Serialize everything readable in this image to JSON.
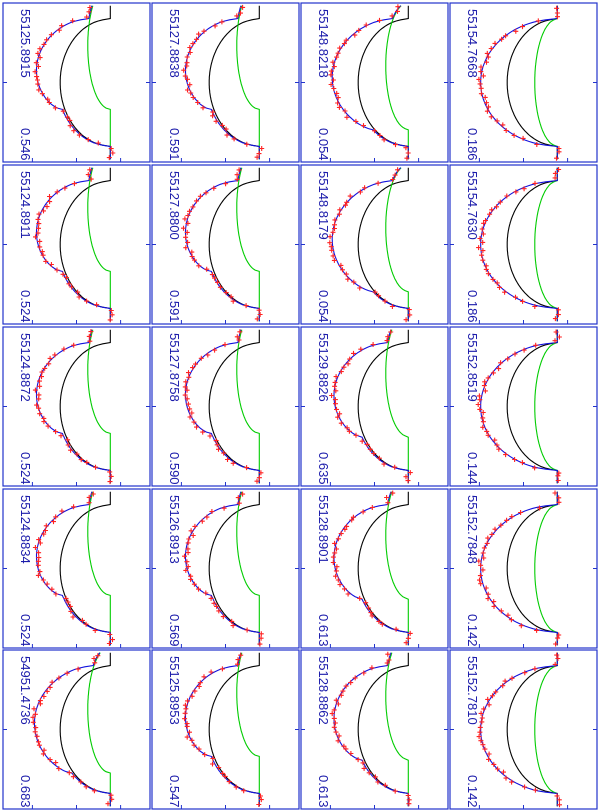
{
  "colors": {
    "frame": "#2233cc",
    "label": "#1a1aaa",
    "primary_profile": "#000000",
    "secondary_profile": "#00cc00",
    "model_fit": "#1111dd",
    "observed": "#ff2222"
  },
  "chart_data": {
    "type": "line",
    "layout": "4 columns x 5 rows, each panel rotated 90 degrees",
    "series": [
      {
        "name": "",
        "role": "observed line profile",
        "marker": "+"
      },
      {
        "name": "",
        "role": "model fit"
      },
      {
        "name": "",
        "role": "primary component profile"
      },
      {
        "name": "",
        "role": "secondary component profile"
      }
    ],
    "panels": [
      {
        "date": "55125.8915",
        "phase": "0.546",
        "secondary_strength": 0.45,
        "secondary_shift": 0.55
      },
      {
        "date": "55124.8911",
        "phase": "0.524",
        "secondary_strength": 0.45,
        "secondary_shift": 0.55
      },
      {
        "date": "55124.8872",
        "phase": "0.524",
        "secondary_strength": 0.45,
        "secondary_shift": 0.55
      },
      {
        "date": "55124.8834",
        "phase": "0.524",
        "secondary_strength": 0.45,
        "secondary_shift": 0.55
      },
      {
        "date": "54951.4736",
        "phase": "0.683",
        "secondary_strength": 0.45,
        "secondary_shift": 0.3
      },
      {
        "date": "55127.8838",
        "phase": "0.591",
        "secondary_strength": 0.45,
        "secondary_shift": 0.55
      },
      {
        "date": "55127.8800",
        "phase": "0.591",
        "secondary_strength": 0.45,
        "secondary_shift": 0.55
      },
      {
        "date": "55127.8758",
        "phase": "0.590",
        "secondary_strength": 0.45,
        "secondary_shift": 0.55
      },
      {
        "date": "55126.8913",
        "phase": "0.569",
        "secondary_strength": 0.45,
        "secondary_shift": 0.55
      },
      {
        "date": "55125.8953",
        "phase": "0.547",
        "secondary_strength": 0.45,
        "secondary_shift": 0.55
      },
      {
        "date": "55148.8218",
        "phase": "0.054",
        "secondary_strength": 0.45,
        "secondary_shift": 0.25
      },
      {
        "date": "55148.8179",
        "phase": "0.054",
        "secondary_strength": 0.45,
        "secondary_shift": 0.25
      },
      {
        "date": "55129.8826",
        "phase": "0.635",
        "secondary_strength": 0.45,
        "secondary_shift": 0.5
      },
      {
        "date": "55128.8901",
        "phase": "0.613",
        "secondary_strength": 0.45,
        "secondary_shift": 0.5
      },
      {
        "date": "55128.8862",
        "phase": "0.613",
        "secondary_strength": 0.45,
        "secondary_shift": 0.5
      },
      {
        "date": "55154.7668",
        "phase": "0.186",
        "secondary_strength": 0.45,
        "secondary_shift": 0.0
      },
      {
        "date": "55154.7630",
        "phase": "0.186",
        "secondary_strength": 0.45,
        "secondary_shift": 0.0
      },
      {
        "date": "55152.8519",
        "phase": "0.144",
        "secondary_strength": 0.45,
        "secondary_shift": 0.0
      },
      {
        "date": "55152.7848",
        "phase": "0.142",
        "secondary_strength": 0.45,
        "secondary_shift": 0.0
      },
      {
        "date": "55152.7810",
        "phase": "0.142",
        "secondary_strength": 0.45,
        "secondary_shift": 0.0
      }
    ]
  }
}
